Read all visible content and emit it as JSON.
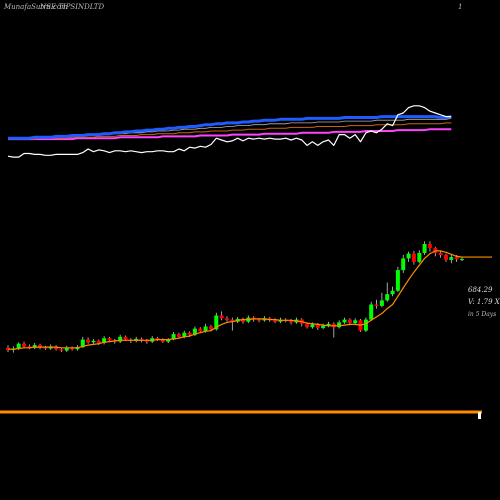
{
  "header": {
    "site": "MunafaSutra.com",
    "ticker": "NSE TIPSINDLTD",
    "corner": "1"
  },
  "info": {
    "price": "684.29",
    "volume": "V: 1.79 X",
    "period": "in 5 Days"
  },
  "colors": {
    "background": "#000000",
    "up_candle": "#00ff00",
    "down_candle": "#ff0000",
    "wick": "#cccccc",
    "price_ma": "#ff8c00",
    "ma_fast": "#1e5cff",
    "ma_slow": "#ff44ff",
    "rsi_line": "#ffffff",
    "bottom_line": "#ff8c00"
  },
  "chart_data": {
    "type": "candlestick",
    "yrange": [
      400,
      720
    ],
    "candles": [
      {
        "o": 505,
        "c": 502,
        "h": 509,
        "l": 499
      },
      {
        "o": 502,
        "c": 504,
        "h": 507,
        "l": 498
      },
      {
        "o": 504,
        "c": 511,
        "h": 513,
        "l": 502
      },
      {
        "o": 511,
        "c": 507,
        "h": 514,
        "l": 504
      },
      {
        "o": 507,
        "c": 505,
        "h": 510,
        "l": 503
      },
      {
        "o": 505,
        "c": 509,
        "h": 512,
        "l": 503
      },
      {
        "o": 509,
        "c": 506,
        "h": 511,
        "l": 503
      },
      {
        "o": 506,
        "c": 504,
        "h": 508,
        "l": 502
      },
      {
        "o": 504,
        "c": 507,
        "h": 510,
        "l": 502
      },
      {
        "o": 507,
        "c": 503,
        "h": 509,
        "l": 501
      },
      {
        "o": 503,
        "c": 501,
        "h": 505,
        "l": 499
      },
      {
        "o": 501,
        "c": 505,
        "h": 508,
        "l": 499
      },
      {
        "o": 505,
        "c": 503,
        "h": 507,
        "l": 501
      },
      {
        "o": 503,
        "c": 506,
        "h": 509,
        "l": 501
      },
      {
        "o": 506,
        "c": 517,
        "h": 521,
        "l": 505
      },
      {
        "o": 517,
        "c": 513,
        "h": 520,
        "l": 511
      },
      {
        "o": 513,
        "c": 515,
        "h": 518,
        "l": 511
      },
      {
        "o": 515,
        "c": 512,
        "h": 517,
        "l": 509
      },
      {
        "o": 512,
        "c": 519,
        "h": 522,
        "l": 510
      },
      {
        "o": 519,
        "c": 516,
        "h": 521,
        "l": 514
      },
      {
        "o": 516,
        "c": 514,
        "h": 518,
        "l": 511
      },
      {
        "o": 514,
        "c": 521,
        "h": 524,
        "l": 512
      },
      {
        "o": 521,
        "c": 517,
        "h": 523,
        "l": 515
      },
      {
        "o": 517,
        "c": 515,
        "h": 519,
        "l": 512
      },
      {
        "o": 515,
        "c": 518,
        "h": 521,
        "l": 513
      },
      {
        "o": 518,
        "c": 516,
        "h": 520,
        "l": 513
      },
      {
        "o": 516,
        "c": 514,
        "h": 518,
        "l": 511
      },
      {
        "o": 514,
        "c": 519,
        "h": 522,
        "l": 512
      },
      {
        "o": 519,
        "c": 517,
        "h": 521,
        "l": 515
      },
      {
        "o": 517,
        "c": 514,
        "h": 519,
        "l": 512
      },
      {
        "o": 514,
        "c": 517,
        "h": 519,
        "l": 512
      },
      {
        "o": 517,
        "c": 525,
        "h": 528,
        "l": 516
      },
      {
        "o": 525,
        "c": 521,
        "h": 527,
        "l": 519
      },
      {
        "o": 521,
        "c": 527,
        "h": 530,
        "l": 519
      },
      {
        "o": 527,
        "c": 524,
        "h": 529,
        "l": 521
      },
      {
        "o": 524,
        "c": 533,
        "h": 536,
        "l": 522
      },
      {
        "o": 533,
        "c": 529,
        "h": 535,
        "l": 527
      },
      {
        "o": 529,
        "c": 536,
        "h": 540,
        "l": 527
      },
      {
        "o": 536,
        "c": 532,
        "h": 538,
        "l": 529
      },
      {
        "o": 532,
        "c": 552,
        "h": 556,
        "l": 530
      },
      {
        "o": 552,
        "c": 548,
        "h": 558,
        "l": 545
      },
      {
        "o": 548,
        "c": 546,
        "h": 551,
        "l": 543
      },
      {
        "o": 546,
        "c": 543,
        "h": 549,
        "l": 530
      },
      {
        "o": 543,
        "c": 547,
        "h": 550,
        "l": 541
      },
      {
        "o": 547,
        "c": 543,
        "h": 549,
        "l": 540
      },
      {
        "o": 543,
        "c": 549,
        "h": 552,
        "l": 541
      },
      {
        "o": 549,
        "c": 546,
        "h": 551,
        "l": 543
      },
      {
        "o": 546,
        "c": 545,
        "h": 548,
        "l": 542
      },
      {
        "o": 545,
        "c": 548,
        "h": 551,
        "l": 543
      },
      {
        "o": 548,
        "c": 546,
        "h": 550,
        "l": 543
      },
      {
        "o": 546,
        "c": 543,
        "h": 548,
        "l": 541
      },
      {
        "o": 543,
        "c": 546,
        "h": 549,
        "l": 541
      },
      {
        "o": 546,
        "c": 544,
        "h": 548,
        "l": 542
      },
      {
        "o": 544,
        "c": 542,
        "h": 547,
        "l": 539
      },
      {
        "o": 542,
        "c": 546,
        "h": 549,
        "l": 540
      },
      {
        "o": 546,
        "c": 540,
        "h": 548,
        "l": 536
      },
      {
        "o": 540,
        "c": 535,
        "h": 542,
        "l": 533
      },
      {
        "o": 535,
        "c": 539,
        "h": 542,
        "l": 533
      },
      {
        "o": 539,
        "c": 534,
        "h": 541,
        "l": 531
      },
      {
        "o": 534,
        "c": 537,
        "h": 540,
        "l": 532
      },
      {
        "o": 537,
        "c": 540,
        "h": 543,
        "l": 535
      },
      {
        "o": 540,
        "c": 535,
        "h": 542,
        "l": 520
      },
      {
        "o": 535,
        "c": 542,
        "h": 545,
        "l": 533
      },
      {
        "o": 542,
        "c": 546,
        "h": 549,
        "l": 540
      },
      {
        "o": 546,
        "c": 541,
        "h": 548,
        "l": 538
      },
      {
        "o": 541,
        "c": 545,
        "h": 548,
        "l": 539
      },
      {
        "o": 545,
        "c": 530,
        "h": 547,
        "l": 528
      },
      {
        "o": 530,
        "c": 546,
        "h": 549,
        "l": 528
      },
      {
        "o": 546,
        "c": 568,
        "h": 572,
        "l": 544
      },
      {
        "o": 568,
        "c": 566,
        "h": 575,
        "l": 562
      },
      {
        "o": 566,
        "c": 574,
        "h": 585,
        "l": 564
      },
      {
        "o": 574,
        "c": 583,
        "h": 600,
        "l": 572
      },
      {
        "o": 583,
        "c": 588,
        "h": 594,
        "l": 580
      },
      {
        "o": 588,
        "c": 618,
        "h": 623,
        "l": 586
      },
      {
        "o": 618,
        "c": 635,
        "h": 640,
        "l": 614
      },
      {
        "o": 635,
        "c": 642,
        "h": 645,
        "l": 630
      },
      {
        "o": 642,
        "c": 630,
        "h": 646,
        "l": 626
      },
      {
        "o": 630,
        "c": 643,
        "h": 647,
        "l": 628
      },
      {
        "o": 643,
        "c": 656,
        "h": 660,
        "l": 640
      },
      {
        "o": 656,
        "c": 650,
        "h": 660,
        "l": 645
      },
      {
        "o": 650,
        "c": 643,
        "h": 652,
        "l": 638
      },
      {
        "o": 643,
        "c": 640,
        "h": 646,
        "l": 636
      },
      {
        "o": 640,
        "c": 633,
        "h": 642,
        "l": 630
      },
      {
        "o": 633,
        "c": 637,
        "h": 641,
        "l": 628
      },
      {
        "o": 637,
        "c": 634,
        "h": 640,
        "l": 630
      },
      {
        "o": 634,
        "c": 634,
        "h": 637,
        "l": 631
      }
    ],
    "price_ma": [
      503,
      503,
      504,
      505,
      505,
      506,
      506,
      506,
      506,
      506,
      505,
      505,
      505,
      505,
      507,
      509,
      510,
      511,
      513,
      514,
      515,
      516,
      516,
      516,
      516,
      516,
      516,
      516,
      517,
      517,
      517,
      518,
      519,
      521,
      522,
      525,
      527,
      529,
      530,
      535,
      539,
      542,
      543,
      545,
      546,
      546,
      547,
      547,
      547,
      546,
      546,
      545,
      545,
      545,
      544,
      543,
      541,
      540,
      539,
      538,
      537,
      537,
      537,
      538,
      539,
      539,
      538,
      540,
      545,
      550,
      555,
      562,
      568,
      580,
      592,
      604,
      615,
      625,
      635,
      642,
      646,
      646,
      644,
      641,
      638,
      637
    ],
    "rsi": [
      32,
      31,
      31,
      35,
      35,
      34,
      34,
      33,
      33,
      34,
      34,
      34,
      34,
      34,
      36,
      40,
      37,
      39,
      38,
      36,
      38,
      38,
      37,
      38,
      37,
      36,
      37,
      37,
      38,
      38,
      37,
      37,
      40,
      38,
      42,
      41,
      43,
      42,
      45,
      52,
      50,
      48,
      49,
      52,
      49,
      52,
      51,
      52,
      51,
      52,
      51,
      51,
      52,
      50,
      52,
      50,
      44,
      48,
      44,
      48,
      50,
      44,
      56,
      56,
      52,
      56,
      48,
      58,
      60,
      58,
      62,
      68,
      66,
      78,
      80,
      86,
      88,
      88,
      86,
      82,
      80,
      78,
      76,
      76
    ],
    "ma_fast": [
      52,
      52,
      52,
      52,
      52,
      53,
      53,
      53,
      53,
      54,
      54,
      54,
      55,
      55,
      55,
      56,
      56,
      56,
      57,
      57,
      58,
      58,
      59,
      59,
      60,
      60,
      61,
      61,
      62,
      62,
      63,
      63,
      64,
      64,
      65,
      65,
      66,
      67,
      67,
      68,
      68,
      69,
      69,
      69,
      70,
      70,
      71,
      71,
      72,
      72,
      72,
      73,
      73,
      73,
      73,
      73,
      74,
      74,
      74,
      74,
      74,
      74,
      74,
      75,
      75,
      75,
      75,
      75,
      75,
      75,
      76,
      76,
      76,
      76,
      76,
      76,
      76,
      76,
      76,
      76,
      76,
      75,
      75,
      76
    ],
    "ma_mid1": [
      52,
      52,
      52,
      52,
      53,
      53,
      53,
      53,
      53,
      53,
      54,
      54,
      54,
      54,
      55,
      55,
      55,
      56,
      56,
      56,
      57,
      57,
      57,
      58,
      58,
      58,
      59,
      59,
      60,
      60,
      60,
      61,
      61,
      62,
      62,
      62,
      63,
      63,
      64,
      64,
      64,
      65,
      65,
      66,
      66,
      66,
      67,
      67,
      67,
      68,
      68,
      68,
      68,
      69,
      69,
      69,
      69,
      69,
      70,
      70,
      70,
      70,
      70,
      71,
      71,
      71,
      71,
      71,
      71,
      72,
      72,
      72,
      72,
      72,
      72,
      73,
      73,
      73,
      73,
      73,
      73,
      73,
      73,
      74
    ],
    "ma_mid2": [
      51,
      51,
      51,
      51,
      51,
      51,
      52,
      52,
      52,
      52,
      52,
      52,
      53,
      53,
      53,
      53,
      53,
      54,
      54,
      54,
      54,
      55,
      55,
      55,
      55,
      56,
      56,
      56,
      57,
      57,
      57,
      57,
      58,
      58,
      58,
      59,
      59,
      59,
      60,
      60,
      60,
      60,
      61,
      61,
      61,
      62,
      62,
      62,
      62,
      63,
      63,
      63,
      63,
      64,
      64,
      64,
      64,
      64,
      65,
      65,
      65,
      65,
      65,
      65,
      66,
      66,
      66,
      66,
      66,
      67,
      67,
      67,
      67,
      67,
      67,
      68,
      68,
      68,
      68,
      68,
      68,
      68,
      69,
      69
    ],
    "ma_slow": [
      51,
      51,
      51,
      51,
      51,
      51,
      51,
      51,
      51,
      51,
      51,
      51,
      51,
      52,
      52,
      52,
      52,
      52,
      52,
      52,
      52,
      53,
      53,
      53,
      53,
      53,
      53,
      53,
      53,
      54,
      54,
      54,
      54,
      54,
      54,
      54,
      55,
      55,
      55,
      55,
      55,
      55,
      56,
      56,
      56,
      56,
      56,
      56,
      57,
      57,
      57,
      57,
      57,
      57,
      57,
      58,
      58,
      58,
      58,
      58,
      58,
      59,
      59,
      59,
      59,
      59,
      59,
      60,
      60,
      60,
      60,
      60,
      60,
      61,
      61,
      61,
      61,
      61,
      61,
      62,
      62,
      62,
      62,
      62
    ],
    "last_price": 684.29,
    "volume_multiple": 1.79
  }
}
